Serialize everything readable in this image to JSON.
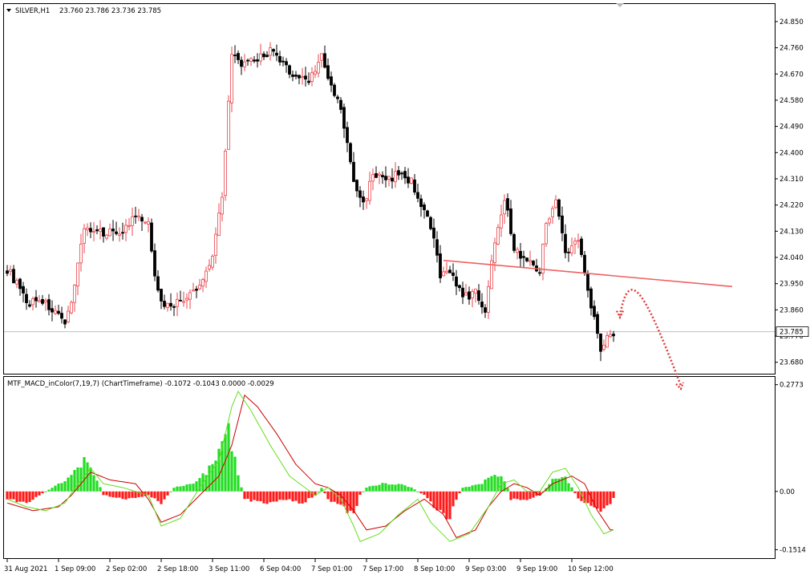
{
  "chart_data": {
    "type": "candlestick",
    "symbol_header": "SILVER,H1",
    "ohlc_header": "23.760 23.786 23.736 23.785",
    "current_price": 23.785,
    "current_price_label": "23.785",
    "price_axis": {
      "ylim": [
        23.66,
        24.88
      ],
      "ticks": [
        "24.850",
        "24.760",
        "24.670",
        "24.580",
        "24.490",
        "24.400",
        "24.310",
        "24.220",
        "24.130",
        "24.040",
        "23.950",
        "23.860",
        "23.770",
        "23.680"
      ],
      "tick_values": [
        24.85,
        24.76,
        24.67,
        24.58,
        24.49,
        24.4,
        24.31,
        24.22,
        24.13,
        24.04,
        23.95,
        23.86,
        23.77,
        23.68
      ]
    },
    "time_axis": {
      "labels": [
        "31 Aug 2021",
        "1 Sep 09:00",
        "2 Sep 02:00",
        "2 Sep 18:00",
        "3 Sep 11:00",
        "6 Sep 04:00",
        "7 Sep 01:00",
        "7 Sep 17:00",
        "8 Sep 10:00",
        "9 Sep 03:00",
        "9 Sep 19:00",
        "10 Sep 12:00"
      ],
      "label_bars": [
        0,
        16,
        32,
        48,
        64,
        80,
        96,
        112,
        128,
        144,
        160,
        176
      ]
    },
    "bar_count": 190,
    "anchors": [
      [
        0,
        24.0
      ],
      [
        3,
        23.95
      ],
      [
        6,
        23.88
      ],
      [
        10,
        23.9
      ],
      [
        15,
        23.85
      ],
      [
        18,
        23.8
      ],
      [
        21,
        23.95
      ],
      [
        24,
        24.15
      ],
      [
        27,
        24.12
      ],
      [
        32,
        24.13
      ],
      [
        36,
        24.13
      ],
      [
        40,
        24.18
      ],
      [
        44,
        24.15
      ],
      [
        46,
        23.99
      ],
      [
        48,
        23.88
      ],
      [
        52,
        23.88
      ],
      [
        56,
        23.9
      ],
      [
        60,
        23.94
      ],
      [
        64,
        24.05
      ],
      [
        67,
        24.26
      ],
      [
        70,
        24.73
      ],
      [
        74,
        24.7
      ],
      [
        78,
        24.72
      ],
      [
        82,
        24.75
      ],
      [
        86,
        24.7
      ],
      [
        90,
        24.66
      ],
      [
        94,
        24.65
      ],
      [
        98,
        24.73
      ],
      [
        100,
        24.65
      ],
      [
        104,
        24.55
      ],
      [
        108,
        24.3
      ],
      [
        111,
        24.22
      ],
      [
        114,
        24.33
      ],
      [
        118,
        24.3
      ],
      [
        122,
        24.33
      ],
      [
        126,
        24.3
      ],
      [
        130,
        24.2
      ],
      [
        133,
        24.1
      ],
      [
        135,
        23.97
      ],
      [
        138,
        24.0
      ],
      [
        142,
        23.9
      ],
      [
        146,
        23.92
      ],
      [
        149,
        23.86
      ],
      [
        152,
        24.1
      ],
      [
        155,
        24.25
      ],
      [
        158,
        24.07
      ],
      [
        162,
        24.03
      ],
      [
        166,
        24.0
      ],
      [
        168,
        24.15
      ],
      [
        171,
        24.25
      ],
      [
        174,
        24.05
      ],
      [
        178,
        24.1
      ],
      [
        180,
        24.0
      ],
      [
        182,
        23.88
      ],
      [
        185,
        23.73
      ],
      [
        187,
        23.76
      ],
      [
        189,
        23.785
      ]
    ],
    "trendline": {
      "from": [
        136,
        24.03
      ],
      "to": [
        226,
        23.94
      ],
      "color": "#f06060"
    },
    "forecast_arrow": {
      "color": "#e04040",
      "points": [
        [
          191,
          23.84
        ],
        [
          194,
          23.94
        ],
        [
          199,
          23.86
        ],
        [
          210,
          23.6
        ]
      ]
    },
    "colors": {
      "bull": "#e8454b",
      "bear": "#000000",
      "grid": "#d8d8d8",
      "price_line": "#c0c0c0"
    }
  },
  "macd": {
    "title": "MTF_MACD_inColor(7,19,7) (ChartTimeframe) -0.1072 -0.1043 0.0000 -0.0029",
    "ylim": [
      -0.165,
      0.285
    ],
    "ticks": [
      "0.2773",
      "0.00",
      "-0.1514"
    ],
    "tick_values": [
      0.2773,
      0.0,
      -0.1514
    ],
    "hist_anchors": [
      [
        0,
        -0.02
      ],
      [
        6,
        -0.03
      ],
      [
        10,
        -0.01
      ],
      [
        14,
        0.01
      ],
      [
        20,
        0.04
      ],
      [
        24,
        0.08
      ],
      [
        28,
        0.03
      ],
      [
        30,
        -0.01
      ],
      [
        38,
        -0.02
      ],
      [
        44,
        -0.01
      ],
      [
        48,
        -0.03
      ],
      [
        52,
        0.01
      ],
      [
        58,
        0.02
      ],
      [
        62,
        0.05
      ],
      [
        66,
        0.1
      ],
      [
        69,
        0.16
      ],
      [
        71,
        0.08
      ],
      [
        73,
        0.01
      ],
      [
        74,
        -0.02
      ],
      [
        80,
        -0.03
      ],
      [
        86,
        -0.02
      ],
      [
        92,
        -0.03
      ],
      [
        96,
        -0.01
      ],
      [
        98,
        0.01
      ],
      [
        100,
        -0.02
      ],
      [
        104,
        -0.04
      ],
      [
        108,
        -0.06
      ],
      [
        110,
        -0.01
      ],
      [
        112,
        0.01
      ],
      [
        116,
        0.02
      ],
      [
        122,
        0.02
      ],
      [
        126,
        0.01
      ],
      [
        130,
        -0.01
      ],
      [
        134,
        -0.05
      ],
      [
        138,
        -0.07
      ],
      [
        140,
        -0.02
      ],
      [
        142,
        0.01
      ],
      [
        148,
        0.02
      ],
      [
        152,
        0.05
      ],
      [
        154,
        0.04
      ],
      [
        156,
        0.01
      ],
      [
        157,
        -0.02
      ],
      [
        162,
        -0.02
      ],
      [
        166,
        -0.01
      ],
      [
        168,
        0.01
      ],
      [
        170,
        0.03
      ],
      [
        174,
        0.04
      ],
      [
        176,
        0.01
      ],
      [
        178,
        -0.02
      ],
      [
        182,
        -0.04
      ],
      [
        186,
        -0.05
      ],
      [
        189,
        -0.02
      ]
    ],
    "signal_anchors": [
      [
        0,
        -0.03
      ],
      [
        8,
        -0.05
      ],
      [
        16,
        -0.04
      ],
      [
        20,
        -0.01
      ],
      [
        26,
        0.05
      ],
      [
        32,
        0.03
      ],
      [
        40,
        0.02
      ],
      [
        44,
        -0.02
      ],
      [
        48,
        -0.08
      ],
      [
        54,
        -0.06
      ],
      [
        60,
        -0.01
      ],
      [
        66,
        0.04
      ],
      [
        70,
        0.12
      ],
      [
        74,
        0.25
      ],
      [
        78,
        0.22
      ],
      [
        84,
        0.15
      ],
      [
        90,
        0.07
      ],
      [
        96,
        0.02
      ],
      [
        100,
        0.01
      ],
      [
        104,
        -0.01
      ],
      [
        108,
        -0.05
      ],
      [
        112,
        -0.1
      ],
      [
        118,
        -0.09
      ],
      [
        124,
        -0.05
      ],
      [
        130,
        -0.02
      ],
      [
        136,
        -0.06
      ],
      [
        140,
        -0.12
      ],
      [
        146,
        -0.1
      ],
      [
        150,
        -0.04
      ],
      [
        154,
        0.0
      ],
      [
        158,
        0.02
      ],
      [
        162,
        0.01
      ],
      [
        166,
        -0.01
      ],
      [
        170,
        0.02
      ],
      [
        176,
        0.04
      ],
      [
        180,
        0.02
      ],
      [
        184,
        -0.05
      ],
      [
        188,
        -0.1
      ]
    ],
    "macd_anchors": [
      [
        0,
        -0.02
      ],
      [
        6,
        -0.04
      ],
      [
        12,
        -0.05
      ],
      [
        18,
        -0.03
      ],
      [
        22,
        0.02
      ],
      [
        26,
        0.06
      ],
      [
        30,
        0.02
      ],
      [
        36,
        0.01
      ],
      [
        44,
        -0.01
      ],
      [
        48,
        -0.09
      ],
      [
        54,
        -0.07
      ],
      [
        60,
        0.01
      ],
      [
        66,
        0.08
      ],
      [
        70,
        0.22
      ],
      [
        72,
        0.26
      ],
      [
        76,
        0.21
      ],
      [
        82,
        0.12
      ],
      [
        88,
        0.04
      ],
      [
        96,
        -0.01
      ],
      [
        100,
        0.01
      ],
      [
        104,
        -0.02
      ],
      [
        108,
        -0.09
      ],
      [
        110,
        -0.13
      ],
      [
        116,
        -0.11
      ],
      [
        122,
        -0.06
      ],
      [
        128,
        -0.02
      ],
      [
        132,
        -0.08
      ],
      [
        138,
        -0.13
      ],
      [
        144,
        -0.11
      ],
      [
        150,
        -0.04
      ],
      [
        154,
        0.02
      ],
      [
        158,
        0.03
      ],
      [
        162,
        0.0
      ],
      [
        166,
        0.0
      ],
      [
        170,
        0.05
      ],
      [
        174,
        0.06
      ],
      [
        178,
        0.01
      ],
      [
        182,
        -0.06
      ],
      [
        186,
        -0.11
      ],
      [
        189,
        -0.1
      ]
    ],
    "colors": {
      "hist_up": "#22dd22",
      "hist_down": "#ff1a1a",
      "signal": "#cc0000",
      "macd": "#66dd22"
    }
  }
}
